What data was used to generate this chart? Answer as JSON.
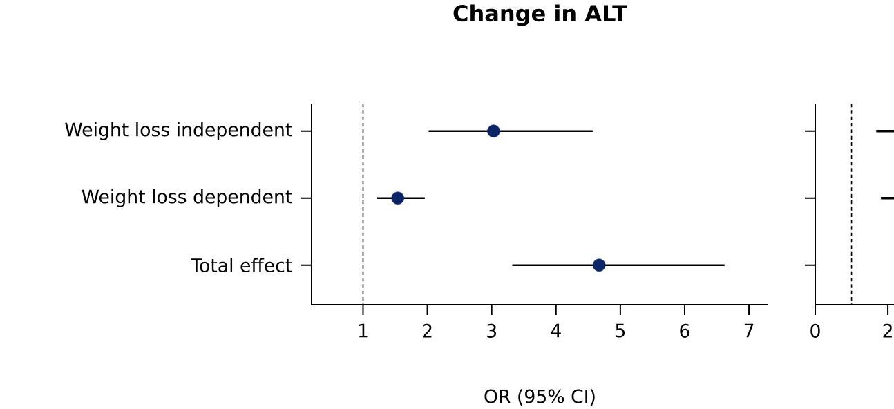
{
  "chart_data": [
    {
      "type": "scatter",
      "title": "Change in ALT",
      "xlabel": "OR (95% CI)",
      "orientation": "horizontal",
      "categories": [
        "Weight loss independent",
        "Weight loss dependent",
        "Total effect"
      ],
      "values": [
        3.03,
        1.54,
        4.67
      ],
      "errors": [
        [
          2.02,
          4.57
        ],
        [
          1.22,
          1.96
        ],
        [
          3.32,
          6.62
        ]
      ],
      "color": "#0b2566",
      "marker": "circle",
      "xlim": [
        0.2,
        7.3
      ],
      "xticks": [
        1,
        2,
        3,
        4,
        5,
        6,
        7
      ],
      "ref_lines": [
        {
          "axis": "x",
          "value": 1,
          "line_style": "dashed",
          "color": "#000000"
        }
      ]
    },
    {
      "type": "bar",
      "orientation": "horizontal",
      "categories": [
        null,
        null,
        null
      ],
      "base": [
        1.68,
        1.81,
        null
      ],
      "values": [
        0.49,
        0.36,
        null
      ],
      "color": "#000000",
      "xlim": [
        0,
        2.17
      ],
      "xticks": [
        0,
        2
      ],
      "tick_labels": "x",
      "ref_lines": [
        {
          "axis": "x",
          "value": 1,
          "line_style": "dashed",
          "color": "#000000"
        }
      ]
    }
  ]
}
